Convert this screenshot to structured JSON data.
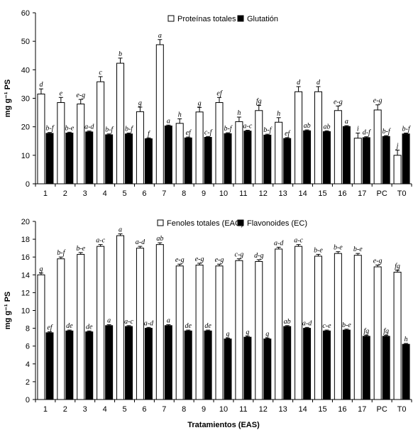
{
  "chart_data": [
    {
      "type": "bar",
      "categories": [
        "1",
        "2",
        "3",
        "4",
        "5",
        "6",
        "7",
        "8",
        "9",
        "10",
        "11",
        "12",
        "13",
        "14",
        "15",
        "16",
        "17",
        "PC",
        "T0"
      ],
      "ylabel": "mg g⁻¹ PS",
      "xlabel": "",
      "ylim": [
        0,
        60
      ],
      "yticks": [
        0,
        10,
        20,
        30,
        40,
        50,
        60
      ],
      "legend": "top-center",
      "series": [
        {
          "name": "Proteínas totales",
          "fill": "#ffffff",
          "values": [
            31.5,
            28.5,
            28.0,
            35.8,
            42.3,
            25.3,
            48.8,
            21.2,
            25.2,
            28.5,
            21.8,
            25.7,
            21.6,
            32.3,
            32.3,
            25.7,
            16.0,
            25.9,
            10.0
          ],
          "errors": [
            1.8,
            1.8,
            1.6,
            1.8,
            1.8,
            1.6,
            1.8,
            1.6,
            1.6,
            1.8,
            1.6,
            1.8,
            1.6,
            1.8,
            1.8,
            1.6,
            1.8,
            1.8,
            1.8
          ],
          "labels": [
            "d",
            "e",
            "e-g",
            "c",
            "b",
            "g",
            "a",
            "h",
            "g",
            "ef",
            "h",
            "fg",
            "h",
            "d",
            "d",
            "e-g",
            "i",
            "e-g",
            "j"
          ]
        },
        {
          "name": "Glutatión",
          "fill": "#000000",
          "values": [
            17.7,
            17.8,
            18.2,
            17.2,
            17.5,
            15.8,
            20.3,
            16.1,
            16.3,
            17.6,
            18.5,
            17.1,
            15.9,
            18.6,
            18.3,
            20.1,
            16.2,
            16.6,
            17.5
          ],
          "errors": [
            0.3,
            0.3,
            0.3,
            0.3,
            0.3,
            0.3,
            0.3,
            0.3,
            0.3,
            0.3,
            0.3,
            0.3,
            0.3,
            0.3,
            0.3,
            0.3,
            0.3,
            0.3,
            0.3
          ],
          "labels": [
            "b-f",
            "b-e",
            "a-d",
            "b-f",
            "b-f",
            "f",
            "a",
            "ef",
            "c-f",
            "b-f",
            "a-c",
            "b-f",
            "ef",
            "ab",
            "ab",
            "a",
            "d-f",
            "b-f",
            "b-f"
          ]
        }
      ]
    },
    {
      "type": "bar",
      "categories": [
        "1",
        "2",
        "3",
        "4",
        "5",
        "6",
        "7",
        "8",
        "9",
        "10",
        "11",
        "12",
        "13",
        "14",
        "15",
        "16",
        "17",
        "PC",
        "T0"
      ],
      "ylabel": "mg g⁻¹ PS",
      "xlabel": "Tratamientos (EAS)",
      "ylim": [
        0,
        20
      ],
      "yticks": [
        0,
        2,
        4,
        6,
        8,
        10,
        12,
        14,
        16,
        18,
        20
      ],
      "legend": "top-center",
      "series": [
        {
          "name": "Fenoles totales (EAG)",
          "fill": "#ffffff",
          "values": [
            14.0,
            15.8,
            16.3,
            17.2,
            18.4,
            17.0,
            17.4,
            15.0,
            15.1,
            15.0,
            15.6,
            15.5,
            16.9,
            17.2,
            16.1,
            16.4,
            16.2,
            14.9,
            14.3
          ],
          "errors": [
            0.2,
            0.2,
            0.2,
            0.2,
            0.2,
            0.2,
            0.2,
            0.2,
            0.2,
            0.2,
            0.2,
            0.2,
            0.2,
            0.2,
            0.2,
            0.2,
            0.2,
            0.2,
            0.2
          ],
          "labels": [
            "g",
            "b-f",
            "b-e",
            "a-c",
            "a",
            "a-d",
            "ab",
            "e-g",
            "e-g",
            "e-g",
            "c-g",
            "d-g",
            "a-d",
            "a-c",
            "b-e",
            "b-e",
            "b-e",
            "e-g",
            "fg"
          ]
        },
        {
          "name": "Flavonoides (EC)",
          "fill": "#000000",
          "values": [
            7.5,
            7.7,
            7.6,
            8.3,
            8.2,
            8.0,
            8.3,
            7.7,
            7.7,
            6.8,
            7.0,
            6.8,
            8.2,
            8.0,
            7.7,
            7.8,
            7.1,
            7.1,
            6.2
          ],
          "errors": [
            0.1,
            0.1,
            0.1,
            0.1,
            0.1,
            0.1,
            0.1,
            0.1,
            0.1,
            0.1,
            0.1,
            0.1,
            0.1,
            0.1,
            0.1,
            0.1,
            0.1,
            0.1,
            0.1
          ],
          "labels": [
            "ef",
            "de",
            "de",
            "a",
            "a-c",
            "a-d",
            "a",
            "de",
            "de",
            "g",
            "g",
            "g",
            "ab",
            "a-d",
            "c-e",
            "b-e",
            "fg",
            "fg",
            "h"
          ]
        }
      ]
    }
  ]
}
